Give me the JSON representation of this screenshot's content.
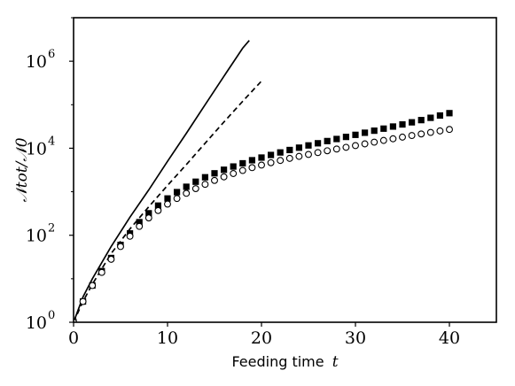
{
  "chart_data": {
    "type": "scatter",
    "x_axis": {
      "label": "Feeding time",
      "label_var": "t",
      "lim": [
        0,
        45
      ],
      "ticks": [
        0,
        10,
        20,
        30,
        40
      ],
      "tick_labels": [
        "0",
        "10",
        "20",
        "30",
        "40"
      ]
    },
    "y_axis": {
      "label": "𝒩tot/𝒩0",
      "scale": "log",
      "lim": [
        1,
        10000000
      ],
      "ticks": [
        1,
        100,
        10000,
        1000000
      ],
      "tick_labels": [
        {
          "base": "10",
          "exp": "0"
        },
        {
          "base": "10",
          "exp": "2"
        },
        {
          "base": "10",
          "exp": "4"
        },
        {
          "base": "10",
          "exp": "6"
        }
      ]
    },
    "grid": false,
    "legend": "none",
    "series": [
      {
        "style": "solid-line",
        "color": "#000000",
        "x": [
          0,
          1,
          2,
          4,
          6,
          8,
          10,
          12,
          14,
          16,
          18,
          18.7
        ],
        "y": [
          1,
          3.8,
          10,
          55,
          260,
          1100,
          5000,
          22000,
          100000,
          450000,
          2000000,
          3000000
        ]
      },
      {
        "style": "dashed-line",
        "color": "#000000",
        "x": [
          0,
          1,
          2,
          4,
          6,
          8,
          10,
          12,
          14,
          16,
          18,
          20
        ],
        "y": [
          1,
          3,
          7.5,
          38,
          140,
          450,
          1400,
          4200,
          13000,
          40000,
          120000,
          350000
        ]
      },
      {
        "style": "filled-square-markers",
        "color": "#000000",
        "x": [
          0,
          1,
          2,
          3,
          4,
          5,
          6,
          7,
          8,
          9,
          10,
          11,
          12,
          13,
          14,
          15,
          16,
          17,
          18,
          19,
          20,
          21,
          22,
          23,
          24,
          25,
          26,
          27,
          28,
          29,
          30,
          31,
          32,
          33,
          34,
          35,
          36,
          37,
          38,
          39,
          40
        ],
        "y": [
          1,
          3,
          7,
          15,
          30,
          60,
          110,
          200,
          320,
          480,
          700,
          980,
          1300,
          1700,
          2150,
          2650,
          3200,
          3800,
          4500,
          5300,
          6100,
          7000,
          8000,
          9100,
          10300,
          11600,
          13000,
          14600,
          16300,
          18200,
          20300,
          22700,
          25300,
          28200,
          31500,
          35200,
          39400,
          44300,
          50000,
          56500,
          64000
        ]
      },
      {
        "style": "open-circle-markers",
        "color": "#000000",
        "x": [
          0,
          1,
          2,
          3,
          4,
          5,
          6,
          7,
          8,
          9,
          10,
          11,
          12,
          13,
          14,
          15,
          16,
          17,
          18,
          19,
          20,
          21,
          22,
          23,
          24,
          25,
          26,
          27,
          28,
          29,
          30,
          31,
          32,
          33,
          34,
          35,
          36,
          37,
          38,
          39,
          40
        ],
        "y": [
          1,
          3,
          7,
          14,
          28,
          55,
          95,
          160,
          250,
          370,
          520,
          700,
          920,
          1180,
          1480,
          1820,
          2200,
          2620,
          3080,
          3580,
          4100,
          4650,
          5230,
          5850,
          6500,
          7200,
          7950,
          8750,
          9600,
          10500,
          11500,
          12600,
          13800,
          15100,
          16500,
          18000,
          19600,
          21300,
          23100,
          25000,
          27000
        ]
      }
    ]
  }
}
